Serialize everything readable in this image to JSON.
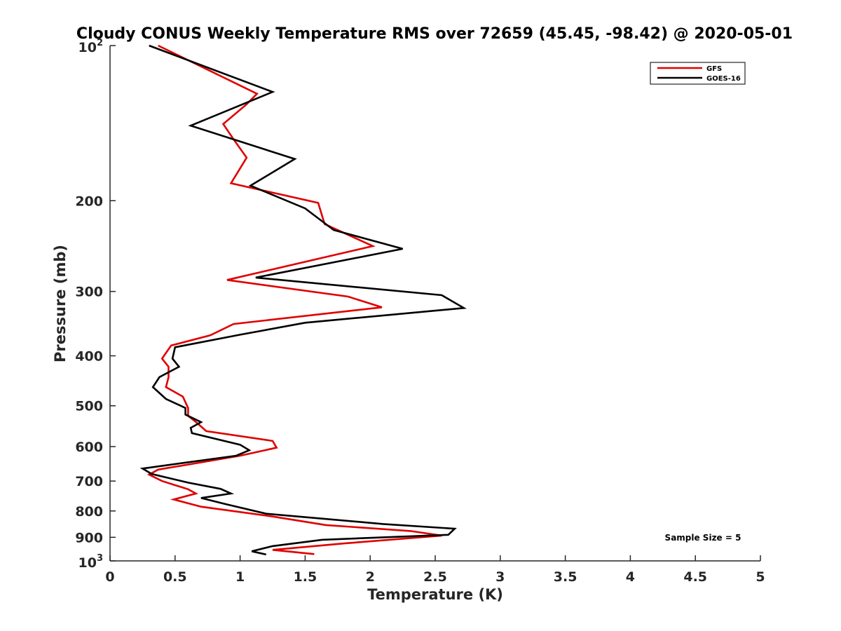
{
  "chart_data": {
    "type": "line",
    "title": "Cloudy CONUS Weekly Temperature RMS over 72659 (45.45, -98.42) @ 2020-05-01",
    "xlabel": "Temperature (K)",
    "ylabel": "Pressure (mb)",
    "xlim": [
      0,
      5
    ],
    "ylim": [
      100,
      1000
    ],
    "y_scale": "log",
    "y_reversed": true,
    "x_ticks": [
      "0",
      "0.5",
      "1",
      "1.5",
      "2",
      "2.5",
      "3",
      "3.5",
      "4",
      "4.5",
      "5"
    ],
    "x_tick_values": [
      0,
      0.5,
      1,
      1.5,
      2,
      2.5,
      3,
      3.5,
      4,
      4.5,
      5
    ],
    "y_ticks": [
      {
        "value": 100,
        "base": "10",
        "exp": "2"
      },
      {
        "value": 200,
        "label": "200"
      },
      {
        "value": 300,
        "label": "300"
      },
      {
        "value": 400,
        "label": "400"
      },
      {
        "value": 500,
        "label": "500"
      },
      {
        "value": 600,
        "label": "600"
      },
      {
        "value": 700,
        "label": "700"
      },
      {
        "value": 800,
        "label": "800"
      },
      {
        "value": 900,
        "label": "900"
      },
      {
        "value": 1000,
        "base": "10",
        "exp": "3"
      }
    ],
    "grid": false,
    "legend_position": "top-right",
    "annotation": "Sample Size = 5",
    "series": [
      {
        "name": "GFS",
        "color": "#e00000",
        "points": [
          [
            0.37,
            100
          ],
          [
            1.13,
            124
          ],
          [
            1.05,
            130
          ],
          [
            0.87,
            142
          ],
          [
            0.95,
            152
          ],
          [
            1.05,
            165
          ],
          [
            0.93,
            185
          ],
          [
            1.6,
            202
          ],
          [
            1.65,
            222
          ],
          [
            2.02,
            245
          ],
          [
            0.9,
            285
          ],
          [
            1.83,
            307
          ],
          [
            2.09,
            322
          ],
          [
            0.95,
            347
          ],
          [
            0.77,
            365
          ],
          [
            0.47,
            382
          ],
          [
            0.4,
            405
          ],
          [
            0.45,
            420
          ],
          [
            0.45,
            440
          ],
          [
            0.43,
            460
          ],
          [
            0.56,
            480
          ],
          [
            0.6,
            505
          ],
          [
            0.6,
            523
          ],
          [
            0.65,
            535
          ],
          [
            0.74,
            560
          ],
          [
            1.25,
            585
          ],
          [
            1.28,
            603
          ],
          [
            1.0,
            625
          ],
          [
            0.37,
            665
          ],
          [
            0.3,
            680
          ],
          [
            0.4,
            700
          ],
          [
            0.6,
            726
          ],
          [
            0.66,
            740
          ],
          [
            0.49,
            760
          ],
          [
            0.7,
            785
          ],
          [
            1.25,
            820
          ],
          [
            1.66,
            852
          ],
          [
            2.31,
            875
          ],
          [
            2.55,
            893
          ],
          [
            1.8,
            925
          ],
          [
            1.25,
            952
          ],
          [
            1.57,
            970
          ]
        ]
      },
      {
        "name": "GOES-16",
        "color": "#000000",
        "points": [
          [
            0.3,
            100
          ],
          [
            1.25,
            123
          ],
          [
            0.62,
            143
          ],
          [
            1.42,
            166
          ],
          [
            1.08,
            187
          ],
          [
            1.5,
            207
          ],
          [
            1.72,
            228
          ],
          [
            2.25,
            248
          ],
          [
            1.12,
            282
          ],
          [
            2.55,
            305
          ],
          [
            2.72,
            323
          ],
          [
            1.5,
            345
          ],
          [
            1.0,
            364
          ],
          [
            0.5,
            385
          ],
          [
            0.48,
            405
          ],
          [
            0.53,
            420
          ],
          [
            0.38,
            440
          ],
          [
            0.33,
            460
          ],
          [
            0.43,
            485
          ],
          [
            0.58,
            505
          ],
          [
            0.58,
            520
          ],
          [
            0.7,
            538
          ],
          [
            0.62,
            552
          ],
          [
            0.63,
            565
          ],
          [
            1.0,
            595
          ],
          [
            1.07,
            610
          ],
          [
            0.97,
            625
          ],
          [
            0.25,
            662
          ],
          [
            0.32,
            678
          ],
          [
            0.6,
            705
          ],
          [
            0.85,
            725
          ],
          [
            0.93,
            740
          ],
          [
            0.7,
            755
          ],
          [
            0.88,
            775
          ],
          [
            1.2,
            810
          ],
          [
            2.1,
            848
          ],
          [
            2.65,
            866
          ],
          [
            2.6,
            890
          ],
          [
            1.63,
            910
          ],
          [
            1.25,
            936
          ],
          [
            1.09,
            958
          ],
          [
            1.2,
            972
          ]
        ]
      }
    ]
  }
}
